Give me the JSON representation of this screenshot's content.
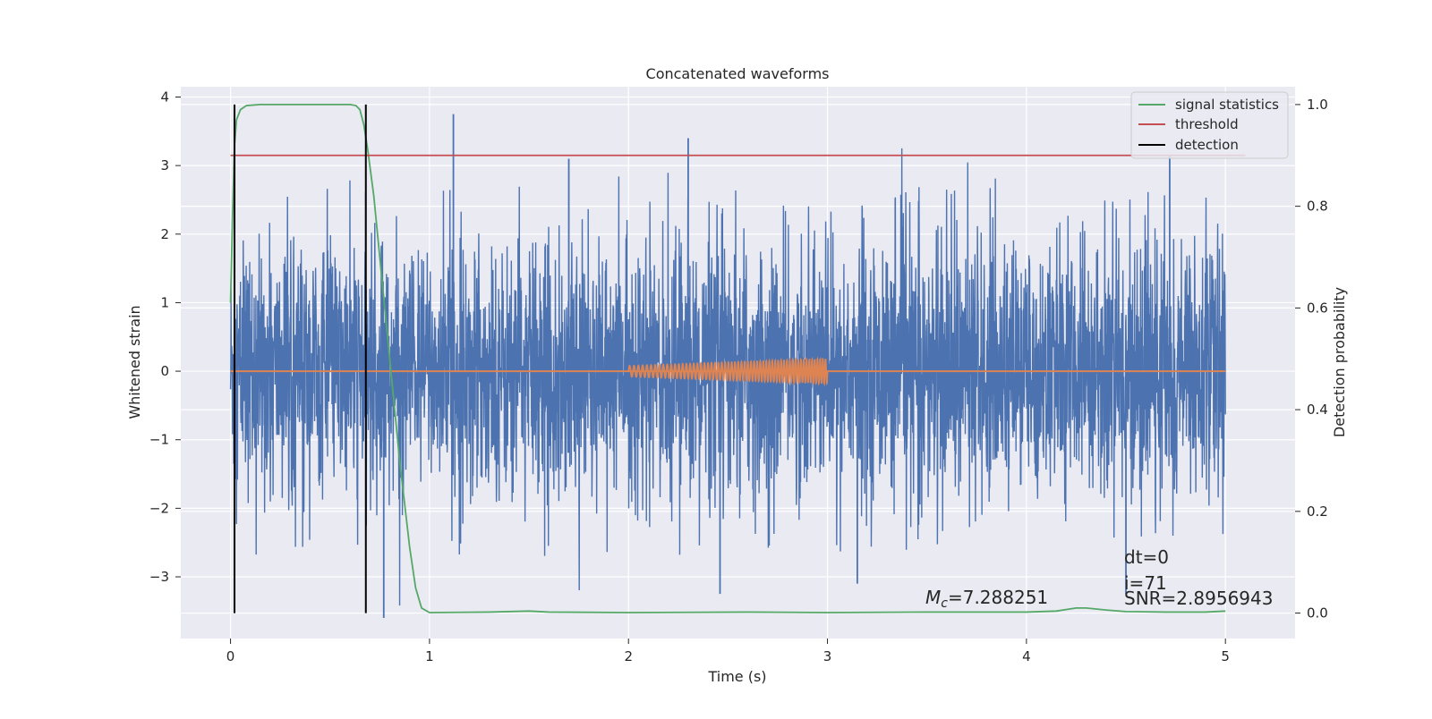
{
  "chart_data": {
    "type": "line",
    "title": "Concatenated waveforms",
    "xlabel": "Time (s)",
    "ylabel_left": "Whitened strain",
    "ylabel_right": "Detection probability",
    "xlim": [
      -0.25,
      5.35
    ],
    "ylim_left": [
      -3.9,
      4.15
    ],
    "ylim_right": [
      -0.05,
      1.035
    ],
    "x_ticks": [
      {
        "value": 0,
        "label": "0"
      },
      {
        "value": 1,
        "label": "1"
      },
      {
        "value": 2,
        "label": "2"
      },
      {
        "value": 3,
        "label": "3"
      },
      {
        "value": 4,
        "label": "4"
      },
      {
        "value": 5,
        "label": "5"
      }
    ],
    "y_left_ticks": [
      {
        "value": 4,
        "label": "4"
      },
      {
        "value": 3,
        "label": "3"
      },
      {
        "value": 2,
        "label": "2"
      },
      {
        "value": 1,
        "label": "1"
      },
      {
        "value": 0,
        "label": "0"
      },
      {
        "value": -1,
        "label": "−1"
      },
      {
        "value": -2,
        "label": "−2"
      },
      {
        "value": -3,
        "label": "−3"
      }
    ],
    "y_right_ticks": [
      {
        "value": 1.0,
        "label": "1.0"
      },
      {
        "value": 0.8,
        "label": "0.8"
      },
      {
        "value": 0.6,
        "label": "0.6"
      },
      {
        "value": 0.4,
        "label": "0.4"
      },
      {
        "value": 0.2,
        "label": "0.2"
      },
      {
        "value": 0.0,
        "label": "0.0"
      }
    ],
    "grid": true,
    "legend_position": "top-right",
    "series": [
      {
        "name": "",
        "axis": "left",
        "color": "#4c72b0",
        "kind": "noise",
        "x_range": [
          0,
          5
        ],
        "core_amplitude": 0.8,
        "max_peak": 3.75,
        "min_trough": -3.6
      },
      {
        "name": "",
        "axis": "left",
        "color": "#dd8452",
        "kind": "chirp",
        "baseline_x": [
          0,
          5
        ],
        "chirp_x_range": [
          2.0,
          3.0
        ],
        "amplitude_start": 0.08,
        "amplitude_end": 0.18,
        "cycles": 60
      },
      {
        "name": "signal statistics",
        "axis": "right",
        "color": "#55a868",
        "points": [
          [
            0.0,
            0.61
          ],
          [
            0.01,
            0.78
          ],
          [
            0.02,
            0.92
          ],
          [
            0.03,
            0.97
          ],
          [
            0.05,
            0.99
          ],
          [
            0.08,
            0.998
          ],
          [
            0.15,
            1.0
          ],
          [
            0.6,
            1.0
          ],
          [
            0.63,
            0.998
          ],
          [
            0.65,
            0.99
          ],
          [
            0.67,
            0.96
          ],
          [
            0.69,
            0.91
          ],
          [
            0.72,
            0.82
          ],
          [
            0.75,
            0.7
          ],
          [
            0.8,
            0.5
          ],
          [
            0.85,
            0.3
          ],
          [
            0.9,
            0.13
          ],
          [
            0.93,
            0.05
          ],
          [
            0.96,
            0.01
          ],
          [
            1.0,
            0.001
          ],
          [
            1.3,
            0.002
          ],
          [
            1.5,
            0.004
          ],
          [
            1.6,
            0.002
          ],
          [
            2.0,
            0.001
          ],
          [
            2.6,
            0.002
          ],
          [
            3.0,
            0.001
          ],
          [
            3.5,
            0.002
          ],
          [
            4.0,
            0.002
          ],
          [
            4.15,
            0.004
          ],
          [
            4.25,
            0.01
          ],
          [
            4.3,
            0.01
          ],
          [
            4.4,
            0.006
          ],
          [
            4.5,
            0.003
          ],
          [
            4.7,
            0.002
          ],
          [
            4.9,
            0.002
          ],
          [
            5.0,
            0.004
          ]
        ]
      },
      {
        "name": "threshold",
        "axis": "right",
        "color": "#c44e52",
        "points": [
          [
            0.0,
            0.9
          ],
          [
            5.1,
            0.9
          ]
        ]
      },
      {
        "name": "detection",
        "axis": "right",
        "color": "#000000",
        "vlines_x": [
          0.02,
          0.68
        ],
        "y_range": [
          0.0,
          1.0
        ]
      }
    ],
    "annotations": {
      "mc_label": "M",
      "mc_subscript": "c",
      "mc_value": "=7.288251",
      "dt": "dt=0",
      "i": "i=71",
      "snr": "SNR=2.8956943"
    }
  }
}
